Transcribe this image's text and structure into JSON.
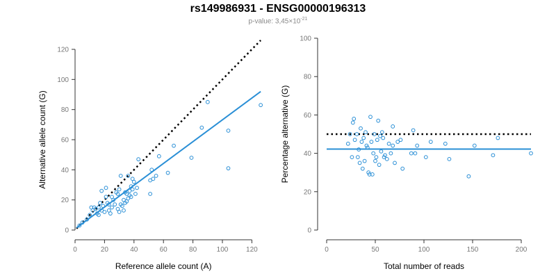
{
  "header": {
    "title": "rs149986931 - ENSG00000196313",
    "subtitle_prefix": "p-value: 3,45×10",
    "subtitle_exponent": "-21"
  },
  "chart_data": [
    {
      "type": "scatter",
      "xlabel": "Reference allele count (A)",
      "ylabel": "Alternative allele count (G)",
      "xlim": [
        0,
        125
      ],
      "ylim": [
        0,
        120
      ],
      "xticks": [
        0,
        20,
        40,
        60,
        80,
        100,
        120
      ],
      "yticks": [
        0,
        20,
        40,
        60,
        80,
        100,
        120
      ],
      "grid": false,
      "point_color": "#2a8fd6",
      "line_color": "#2a8fd6",
      "points": [
        [
          3,
          3
        ],
        [
          5,
          5
        ],
        [
          8,
          7
        ],
        [
          10,
          10
        ],
        [
          11,
          15
        ],
        [
          12,
          13
        ],
        [
          13,
          15
        ],
        [
          14,
          14
        ],
        [
          15,
          11
        ],
        [
          16,
          10
        ],
        [
          16,
          15
        ],
        [
          17,
          18
        ],
        [
          18,
          13
        ],
        [
          18,
          26
        ],
        [
          19,
          16
        ],
        [
          20,
          12
        ],
        [
          21,
          22
        ],
        [
          21,
          28
        ],
        [
          22,
          18
        ],
        [
          23,
          17
        ],
        [
          23,
          13
        ],
        [
          24,
          11
        ],
        [
          25,
          15
        ],
        [
          25,
          22
        ],
        [
          26,
          20
        ],
        [
          27,
          17
        ],
        [
          28,
          25
        ],
        [
          29,
          24
        ],
        [
          29,
          14
        ],
        [
          30,
          27
        ],
        [
          30,
          12
        ],
        [
          31,
          17
        ],
        [
          31,
          36
        ],
        [
          32,
          16
        ],
        [
          33,
          13
        ],
        [
          33,
          20
        ],
        [
          34,
          18
        ],
        [
          34,
          25
        ],
        [
          35,
          19
        ],
        [
          35,
          24
        ],
        [
          36,
          21
        ],
        [
          36,
          36
        ],
        [
          37,
          23
        ],
        [
          37,
          26
        ],
        [
          38,
          22
        ],
        [
          38,
          29
        ],
        [
          39,
          27
        ],
        [
          39,
          34
        ],
        [
          40,
          32
        ],
        [
          41,
          24
        ],
        [
          42,
          28
        ],
        [
          43,
          47
        ],
        [
          51,
          24
        ],
        [
          51,
          33
        ],
        [
          52,
          40
        ],
        [
          53,
          34
        ],
        [
          55,
          36
        ],
        [
          57,
          49
        ],
        [
          63,
          38
        ],
        [
          67,
          56
        ],
        [
          79,
          48
        ],
        [
          86,
          68
        ],
        [
          90,
          85
        ],
        [
          104,
          66
        ],
        [
          104,
          41
        ],
        [
          126,
          83
        ]
      ],
      "fit_line": [
        [
          1,
          1.5
        ],
        [
          126,
          92
        ]
      ],
      "reference_line": [
        [
          1,
          1
        ],
        [
          126,
          126
        ]
      ]
    },
    {
      "type": "scatter",
      "xlabel": "Total number of reads",
      "ylabel": "Percentage alternative (G)",
      "xlim": [
        0,
        210
      ],
      "ylim": [
        0,
        100
      ],
      "xticks": [
        0,
        50,
        100,
        150,
        200
      ],
      "yticks": [
        0,
        20,
        40,
        60,
        80,
        100
      ],
      "grid": false,
      "point_color": "#2a8fd6",
      "line_color": "#2a8fd6",
      "points": [
        [
          22,
          45
        ],
        [
          24,
          50
        ],
        [
          26,
          38
        ],
        [
          27,
          56
        ],
        [
          28,
          58
        ],
        [
          29,
          47
        ],
        [
          31,
          50
        ],
        [
          32,
          38
        ],
        [
          33,
          42
        ],
        [
          34,
          35
        ],
        [
          35,
          53
        ],
        [
          36,
          46
        ],
        [
          37,
          32
        ],
        [
          38,
          48
        ],
        [
          39,
          36
        ],
        [
          40,
          51
        ],
        [
          41,
          44
        ],
        [
          42,
          43
        ],
        [
          43,
          30
        ],
        [
          44,
          29
        ],
        [
          45,
          59
        ],
        [
          46,
          46
        ],
        [
          47,
          29
        ],
        [
          48,
          40
        ],
        [
          49,
          50
        ],
        [
          50,
          36
        ],
        [
          51,
          38
        ],
        [
          52,
          47
        ],
        [
          53,
          57
        ],
        [
          54,
          34
        ],
        [
          55,
          49
        ],
        [
          56,
          41
        ],
        [
          57,
          51
        ],
        [
          58,
          48
        ],
        [
          59,
          38
        ],
        [
          60,
          39
        ],
        [
          62,
          37
        ],
        [
          64,
          45
        ],
        [
          66,
          40
        ],
        [
          68,
          44
        ],
        [
          68,
          54
        ],
        [
          70,
          35
        ],
        [
          73,
          46
        ],
        [
          76,
          47
        ],
        [
          78,
          32
        ],
        [
          87,
          40
        ],
        [
          89,
          52
        ],
        [
          91,
          40
        ],
        [
          93,
          44
        ],
        [
          102,
          38
        ],
        [
          107,
          46
        ],
        [
          122,
          45
        ],
        [
          126,
          37
        ],
        [
          146,
          28
        ],
        [
          152,
          44
        ],
        [
          171,
          39
        ],
        [
          176,
          48
        ],
        [
          210,
          40
        ]
      ],
      "fit_line": [
        [
          0,
          42.2
        ],
        [
          210,
          42.2
        ]
      ],
      "reference_line": [
        [
          0,
          50
        ],
        [
          210,
          50
        ]
      ]
    }
  ]
}
